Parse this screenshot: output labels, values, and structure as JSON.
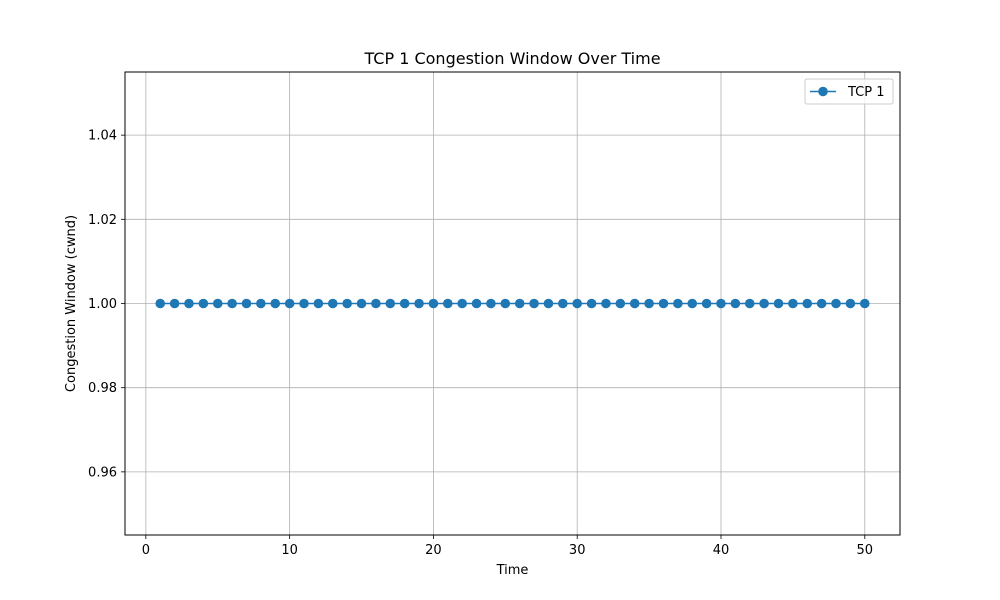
{
  "chart_data": {
    "type": "line",
    "title": "TCP 1 Congestion Window Over Time",
    "xlabel": "Time",
    "ylabel": "Congestion Window (cwnd)",
    "x": [
      1,
      2,
      3,
      4,
      5,
      6,
      7,
      8,
      9,
      10,
      11,
      12,
      13,
      14,
      15,
      16,
      17,
      18,
      19,
      20,
      21,
      22,
      23,
      24,
      25,
      26,
      27,
      28,
      29,
      30,
      31,
      32,
      33,
      34,
      35,
      36,
      37,
      38,
      39,
      40,
      41,
      42,
      43,
      44,
      45,
      46,
      47,
      48,
      49,
      50
    ],
    "series": [
      {
        "name": "TCP 1",
        "color": "#1f77b4",
        "marker": "circle",
        "values": [
          1,
          1,
          1,
          1,
          1,
          1,
          1,
          1,
          1,
          1,
          1,
          1,
          1,
          1,
          1,
          1,
          1,
          1,
          1,
          1,
          1,
          1,
          1,
          1,
          1,
          1,
          1,
          1,
          1,
          1,
          1,
          1,
          1,
          1,
          1,
          1,
          1,
          1,
          1,
          1,
          1,
          1,
          1,
          1,
          1,
          1,
          1,
          1,
          1,
          1
        ]
      }
    ],
    "xlim": [
      -1.45,
      52.45
    ],
    "ylim": [
      0.945,
      1.055
    ],
    "xticks": [
      0,
      10,
      20,
      30,
      40,
      50
    ],
    "xtick_labels": [
      "0",
      "10",
      "20",
      "30",
      "40",
      "50"
    ],
    "yticks": [
      0.96,
      0.98,
      1.0,
      1.02,
      1.04
    ],
    "ytick_labels": [
      "0.96",
      "0.98",
      "1.00",
      "1.02",
      "1.04"
    ],
    "grid": true,
    "legend_position": "top-right"
  }
}
